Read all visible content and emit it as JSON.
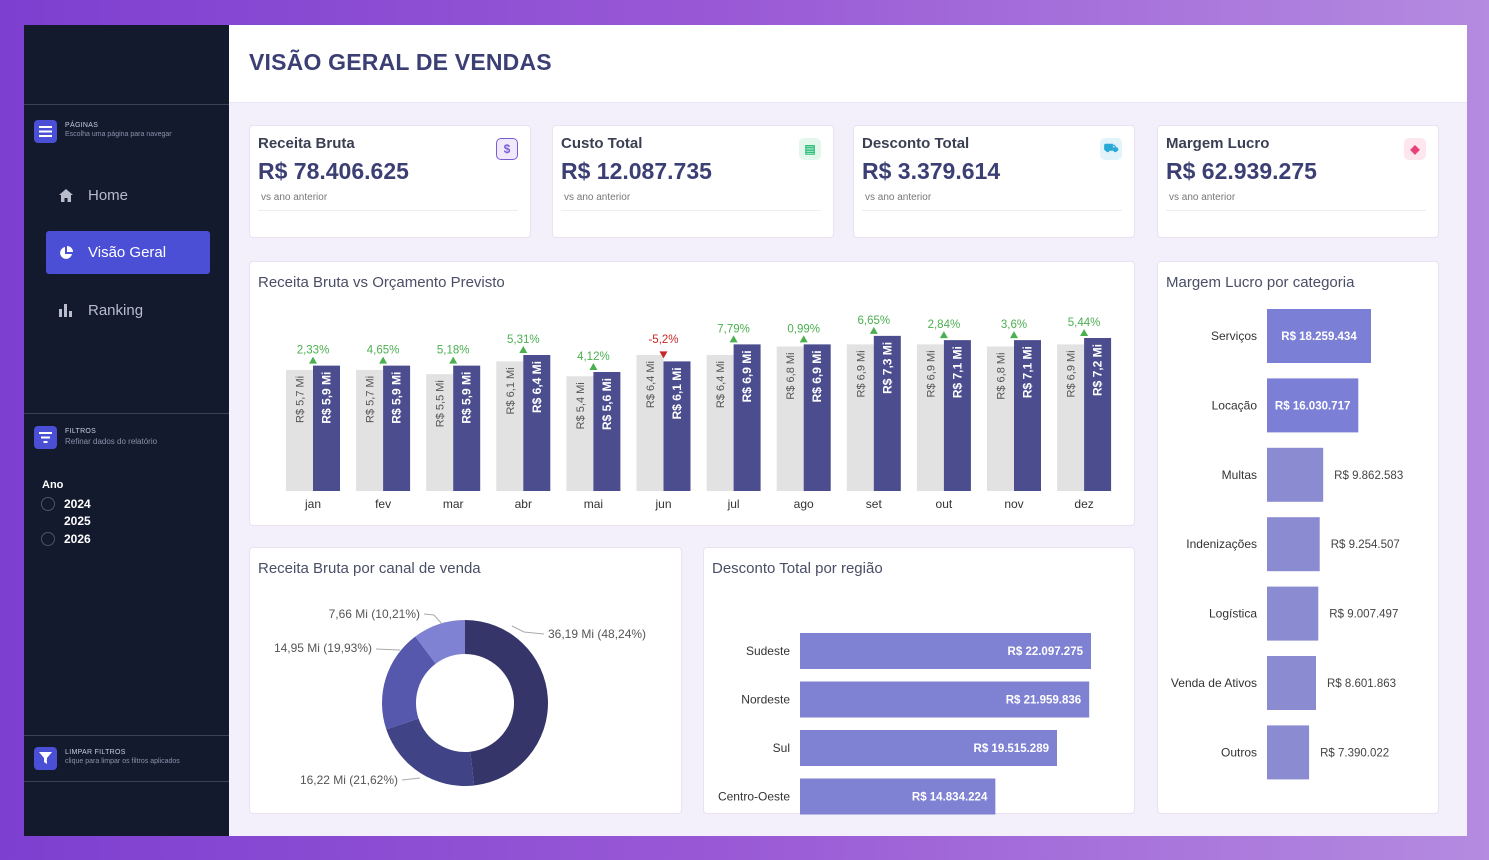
{
  "sidebar": {
    "pages_title": "PÁGINAS",
    "pages_sub": "Escolha uma página para navegar",
    "nav": [
      {
        "label": "Home",
        "icon": "home-icon"
      },
      {
        "label": "Visão Geral",
        "icon": "pie-chart-icon"
      },
      {
        "label": "Ranking",
        "icon": "bar-chart-icon"
      }
    ],
    "filters_title": "FILTROS",
    "filters_sub": "Refinar dados do relatório",
    "year_label": "Ano",
    "years": [
      "2024",
      "2025",
      "2026"
    ],
    "clear_title": "LIMPAR FILTROS",
    "clear_sub": "clique para limpar os filtros aplicados"
  },
  "header": {
    "title": "VISÃO GERAL DE VENDAS"
  },
  "kpis": [
    {
      "title": "Receita Bruta",
      "value": "R$ 78.406.625",
      "sub": "vs ano anterior",
      "icon": "dollar-icon",
      "glyph": "$",
      "color": "#7a5cd6",
      "bg": "#efe9fb"
    },
    {
      "title": "Custo Total",
      "value": "R$ 12.087.735",
      "sub": "vs ano anterior",
      "icon": "box-icon",
      "glyph": "▤",
      "color": "#2ebf7a",
      "bg": "#e3f7ec"
    },
    {
      "title": "Desconto Total",
      "value": "R$ 3.379.614",
      "sub": "vs ano anterior",
      "icon": "cart-icon",
      "glyph": "⛟",
      "color": "#2aa8d8",
      "bg": "#e2f3fa"
    },
    {
      "title": "Margem Lucro",
      "value": "R$ 62.939.275",
      "sub": "vs ano anterior",
      "icon": "tag-icon",
      "glyph": "◆",
      "color": "#e8417a",
      "bg": "#fde6ee"
    }
  ],
  "charts_titles": {
    "monthly": "Receita Bruta vs Orçamento Previsto",
    "category": "Margem Lucro por categoria",
    "channel": "Receita Bruta por canal de venda",
    "region": "Desconto Total por região"
  },
  "chart_data": [
    {
      "type": "bar",
      "title": "Receita Bruta vs Orçamento Previsto",
      "categories": [
        "jan",
        "fev",
        "mar",
        "abr",
        "mai",
        "jun",
        "jul",
        "ago",
        "set",
        "out",
        "nov",
        "dez"
      ],
      "series": [
        {
          "name": "Orçamento Previsto",
          "color": "#e2e2e2",
          "values": [
            5.7,
            5.7,
            5.5,
            6.1,
            5.4,
            6.4,
            6.4,
            6.8,
            6.9,
            6.9,
            6.8,
            6.9
          ],
          "labels": [
            "R$ 5,7 Mi",
            "R$ 5,7 Mi",
            "R$ 5,5 Mi",
            "R$ 6,1 Mi",
            "R$ 5,4 Mi",
            "R$ 6,4 Mi",
            "R$ 6,4 Mi",
            "R$ 6,8 Mi",
            "R$ 6,9 Mi",
            "R$ 6,9 Mi",
            "R$ 6,8 Mi",
            "R$ 6,9 Mi"
          ]
        },
        {
          "name": "Receita Bruta",
          "color": "#4b4d8f",
          "values": [
            5.9,
            5.9,
            5.9,
            6.4,
            5.6,
            6.1,
            6.9,
            6.9,
            7.3,
            7.1,
            7.1,
            7.2
          ],
          "labels": [
            "R$ 5,9 Mi",
            "R$ 5,9 Mi",
            "R$ 5,9 Mi",
            "R$ 6,4 Mi",
            "R$ 5,6 Mi",
            "R$ 6,1 Mi",
            "R$ 6,9 Mi",
            "R$ 6,9 Mi",
            "R$ 7,3 Mi",
            "R$ 7,1 Mi",
            "R$ 7,1 Mi",
            "R$ 7,2 Mi"
          ]
        }
      ],
      "variation": [
        "2,33%",
        "4,65%",
        "5,18%",
        "5,31%",
        "4,12%",
        "-5,2%",
        "7,79%",
        "0,99%",
        "6,65%",
        "2,84%",
        "3,6%",
        "5,44%"
      ],
      "variation_up": [
        true,
        true,
        true,
        true,
        true,
        false,
        true,
        true,
        true,
        true,
        true,
        true
      ],
      "ylim": [
        0,
        8
      ]
    },
    {
      "type": "bar",
      "orientation": "horizontal",
      "title": "Margem Lucro por categoria",
      "categories": [
        "Serviços",
        "Locação",
        "Multas",
        "Indenizações",
        "Logística",
        "Venda de Ativos",
        "Outros"
      ],
      "values": [
        18259434,
        16030717,
        9862583,
        9254507,
        9007497,
        8601863,
        7390022
      ],
      "labels": [
        "R$ 18.259.434",
        "R$ 16.030.717",
        "R$ 9.862.583",
        "R$ 9.254.507",
        "R$ 9.007.497",
        "R$ 8.601.863",
        "R$ 7.390.022"
      ],
      "colors": [
        "#7c7fd6",
        "#7c7fd6",
        "#8a8bd0",
        "#8a8bd0",
        "#8a8bd0",
        "#8a8bd0",
        "#8a8bd0"
      ]
    },
    {
      "type": "pie",
      "title": "Receita Bruta por canal de venda",
      "values": [
        48.24,
        21.62,
        19.93,
        10.21
      ],
      "labels": [
        "36,19 Mi (48,24%)",
        "16,22 Mi (21,62%)",
        "14,95 Mi (19,93%)",
        "7,66 Mi (10,21%)"
      ],
      "colors": [
        "#35356a",
        "#404385",
        "#5558ad",
        "#7f82d3"
      ]
    },
    {
      "type": "bar",
      "orientation": "horizontal",
      "title": "Desconto Total por região",
      "categories": [
        "Sudeste",
        "Nordeste",
        "Sul",
        "Centro-Oeste"
      ],
      "values": [
        22097275,
        21959836,
        19515289,
        14834224
      ],
      "labels": [
        "R$ 22.097.275",
        "R$ 21.959.836",
        "R$ 19.515.289",
        "R$ 14.834.224"
      ],
      "color": "#7f81d3"
    }
  ]
}
